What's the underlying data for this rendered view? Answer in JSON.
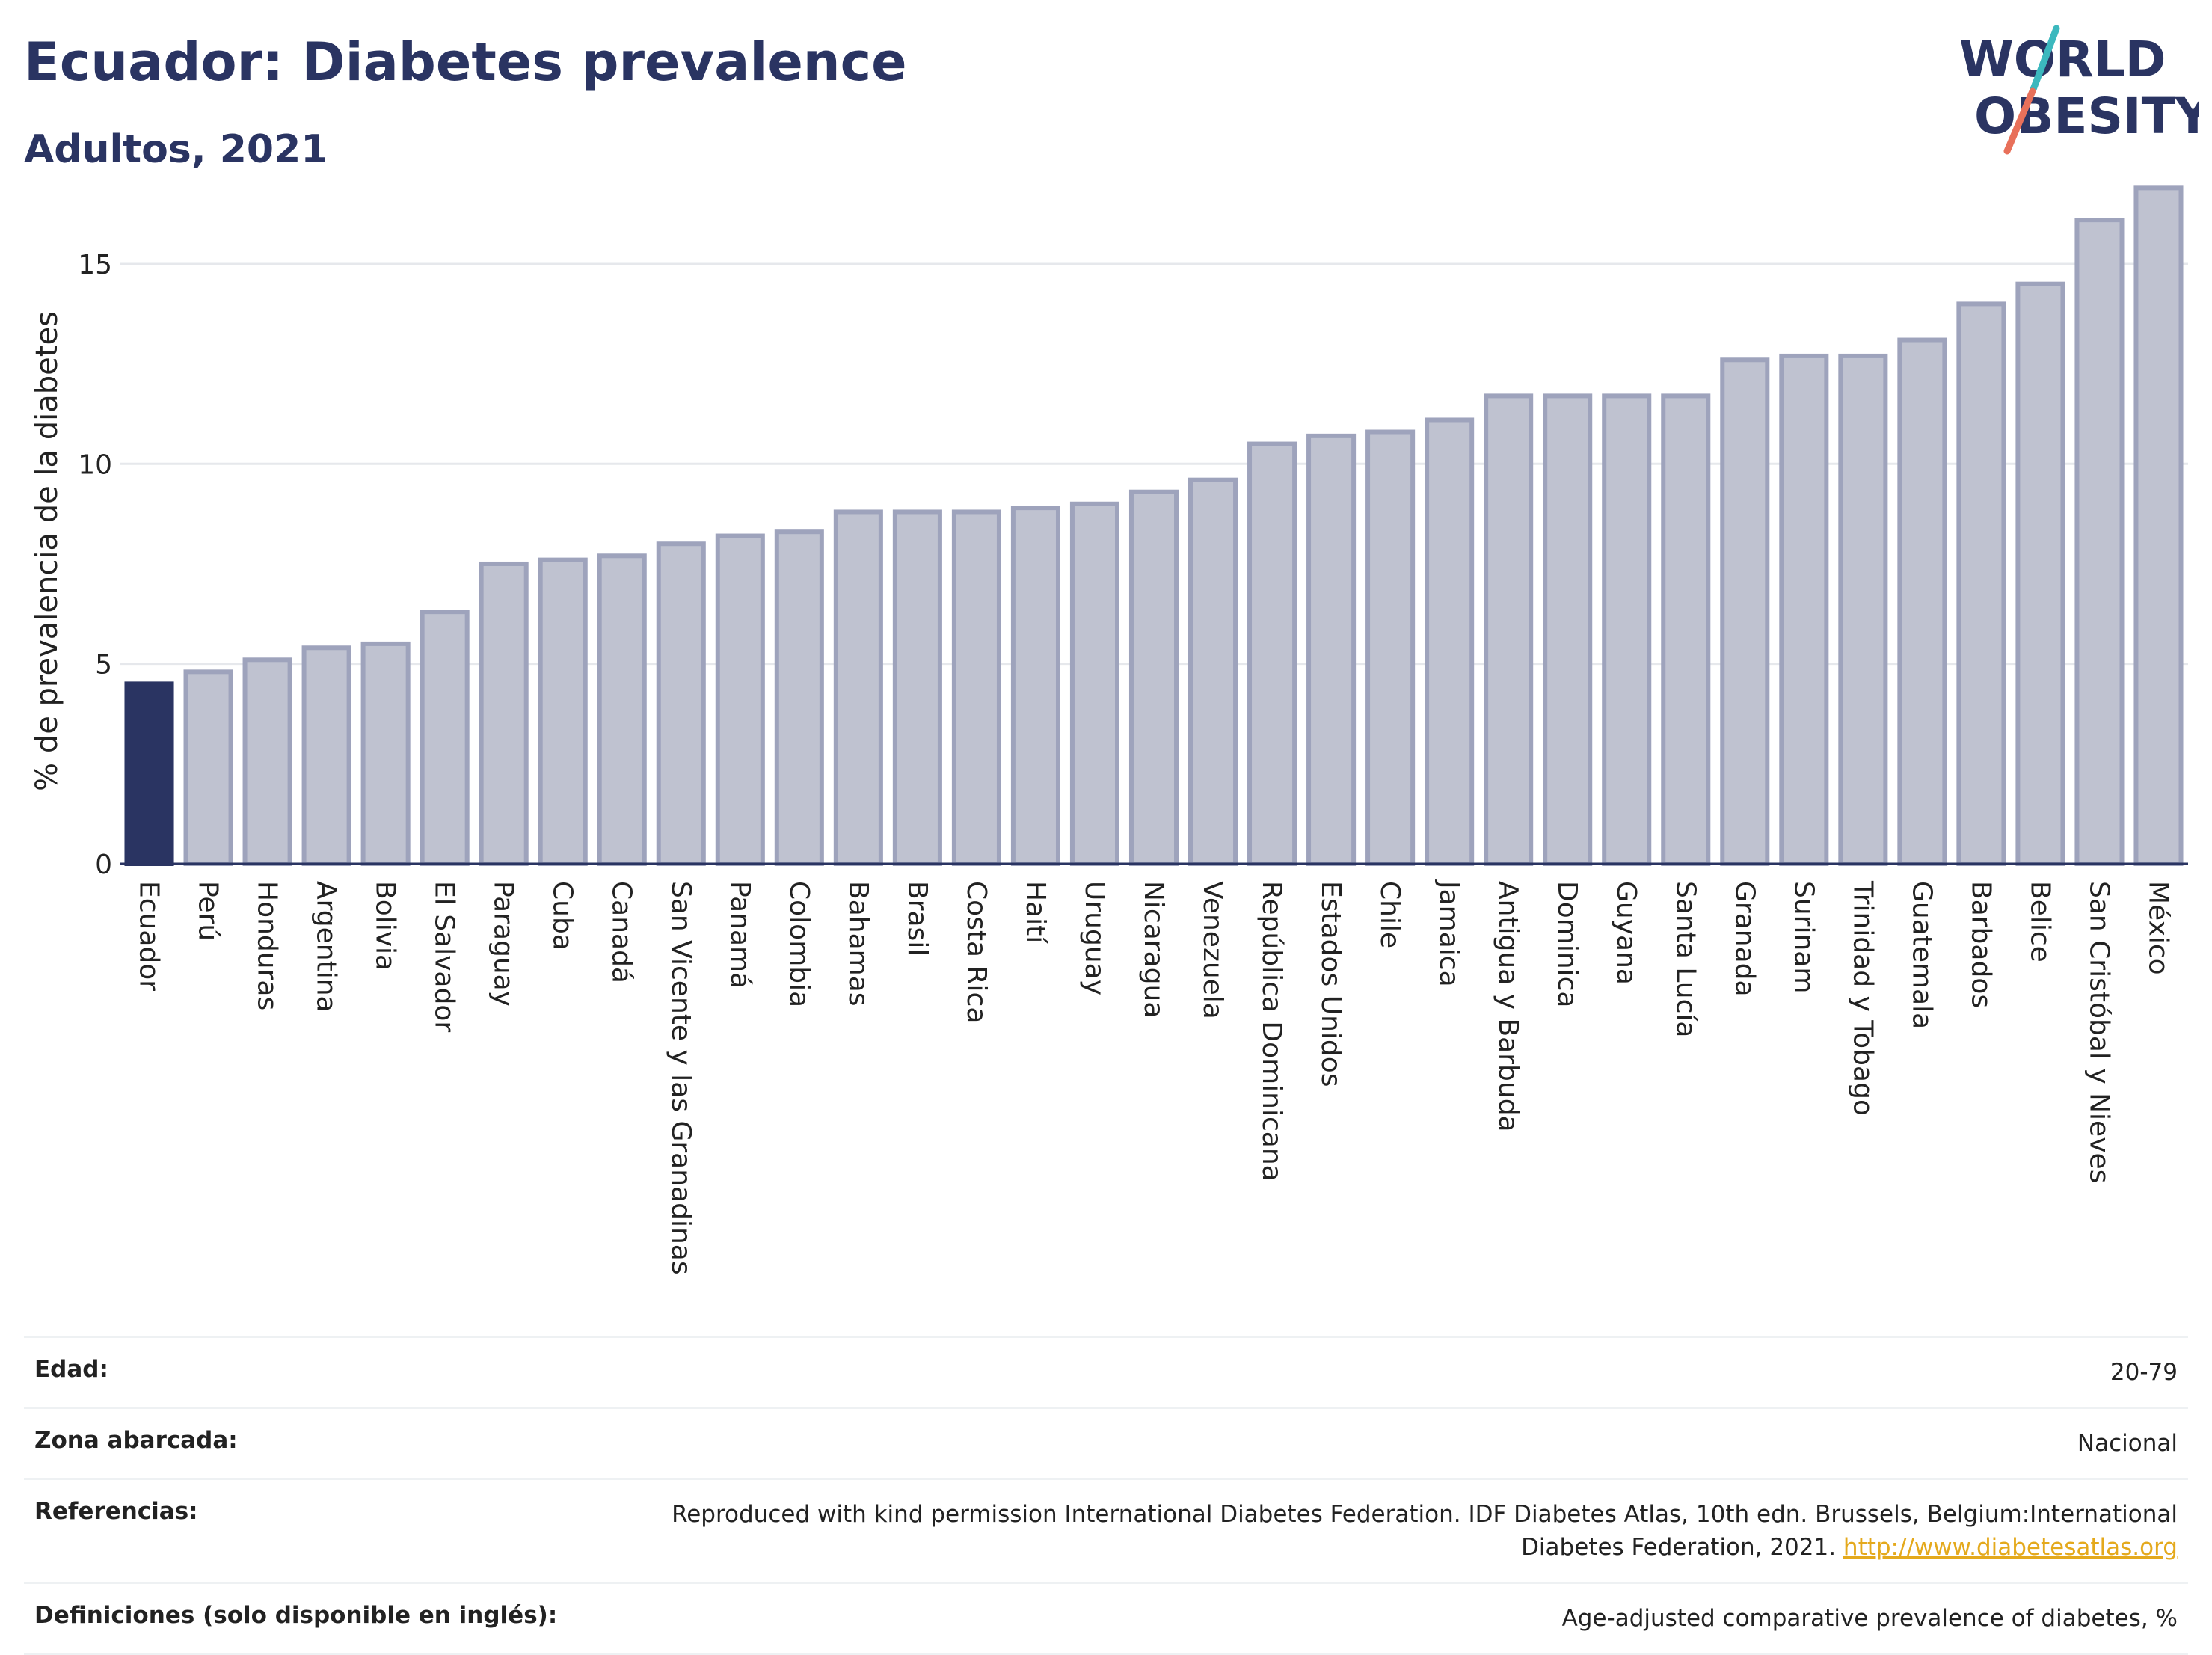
{
  "header": {
    "title": "Ecuador: Diabetes prevalence",
    "subtitle": "Adultos, 2021",
    "logo_line1": "WORLD",
    "logo_line2": "OBESITY"
  },
  "colors": {
    "highlight": "#2a3462",
    "bar": "#bfc2d0",
    "bar_edge": "#9ea3bc",
    "logo_teal": "#3cb8be",
    "logo_coral": "#e8705a"
  },
  "chart_data": {
    "type": "bar",
    "ylabel": "% de prevalencia de la diabetes",
    "ylim": [
      0,
      17
    ],
    "yticks": [
      0,
      5,
      10,
      15
    ],
    "grid": true,
    "highlight": "Ecuador",
    "categories": [
      "Ecuador",
      "Perú",
      "Honduras",
      "Argentina",
      "Bolivia",
      "El Salvador",
      "Paraguay",
      "Cuba",
      "Canadá",
      "San Vicente y las Granadinas",
      "Panamá",
      "Colombia",
      "Bahamas",
      "Brasil",
      "Costa Rica",
      "Haití",
      "Uruguay",
      "Nicaragua",
      "Venezuela",
      "República Dominicana",
      "Estados Unidos",
      "Chile",
      "Jamaica",
      "Antigua y Barbuda",
      "Dominica",
      "Guyana",
      "Santa Lucía",
      "Granada",
      "Surinam",
      "Trinidad y Tobago",
      "Guatemala",
      "Barbados",
      "Belice",
      "San Cristóbal y Nieves",
      "México"
    ],
    "values": [
      4.5,
      4.8,
      5.1,
      5.4,
      5.5,
      6.3,
      7.5,
      7.6,
      7.7,
      8.0,
      8.2,
      8.3,
      8.8,
      8.8,
      8.8,
      8.9,
      9.0,
      9.3,
      9.6,
      10.5,
      10.7,
      10.8,
      11.1,
      11.7,
      11.7,
      11.7,
      11.7,
      12.6,
      12.7,
      12.7,
      13.1,
      14.0,
      14.5,
      16.1,
      16.9
    ]
  },
  "info": {
    "rows": [
      {
        "label": "Edad:",
        "value": "20-79"
      },
      {
        "label": "Zona abarcada:",
        "value": "Nacional"
      },
      {
        "label": "Referencias:",
        "value": "Reproduced with kind permission International Diabetes Federation.  IDF Diabetes Atlas, 10th edn. Brussels, Belgium:International Diabetes Federation, 2021.",
        "link": "http://www.diabetesatlas.org"
      },
      {
        "label": "Definiciones (solo disponible en inglés):",
        "value": "Age-adjusted comparative prevalence of diabetes, %"
      }
    ]
  }
}
